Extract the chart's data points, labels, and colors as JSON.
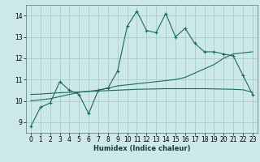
{
  "xlabel": "Humidex (Indice chaleur)",
  "bg_color": "#cce8e8",
  "grid_color": "#aacccc",
  "line_color": "#1a6b5a",
  "xlim": [
    -0.5,
    23.5
  ],
  "ylim": [
    8.5,
    14.5
  ],
  "xticks": [
    0,
    1,
    2,
    3,
    4,
    5,
    6,
    7,
    8,
    9,
    10,
    11,
    12,
    13,
    14,
    15,
    16,
    17,
    18,
    19,
    20,
    21,
    22,
    23
  ],
  "yticks": [
    9,
    10,
    11,
    12,
    13,
    14
  ],
  "curve1_x": [
    0,
    1,
    2,
    3,
    4,
    5,
    6,
    7,
    8,
    9,
    10,
    11,
    12,
    13,
    14,
    15,
    16,
    17,
    18,
    19,
    20,
    21,
    22,
    23
  ],
  "curve1_y": [
    8.8,
    9.7,
    9.9,
    10.9,
    10.5,
    10.3,
    9.4,
    10.5,
    10.6,
    11.4,
    13.5,
    14.2,
    13.3,
    13.2,
    14.1,
    13.0,
    13.4,
    12.7,
    12.3,
    12.3,
    12.2,
    12.1,
    11.2,
    10.3
  ],
  "curve2_x": [
    0,
    1,
    2,
    3,
    4,
    5,
    6,
    7,
    8,
    9,
    10,
    11,
    12,
    13,
    14,
    15,
    16,
    17,
    18,
    19,
    20,
    21,
    22,
    23
  ],
  "curve2_y": [
    10.0,
    10.05,
    10.1,
    10.2,
    10.3,
    10.4,
    10.45,
    10.5,
    10.6,
    10.7,
    10.75,
    10.8,
    10.85,
    10.9,
    10.95,
    11.0,
    11.1,
    11.3,
    11.5,
    11.7,
    12.0,
    12.2,
    12.25,
    12.3
  ],
  "curve3_x": [
    0,
    1,
    2,
    3,
    4,
    5,
    6,
    7,
    8,
    9,
    10,
    11,
    12,
    13,
    14,
    15,
    16,
    17,
    18,
    19,
    20,
    21,
    22,
    23
  ],
  "curve3_y": [
    10.3,
    10.32,
    10.35,
    10.38,
    10.4,
    10.42,
    10.44,
    10.46,
    10.48,
    10.5,
    10.52,
    10.54,
    10.55,
    10.56,
    10.57,
    10.57,
    10.57,
    10.57,
    10.57,
    10.56,
    10.55,
    10.54,
    10.52,
    10.4
  ]
}
